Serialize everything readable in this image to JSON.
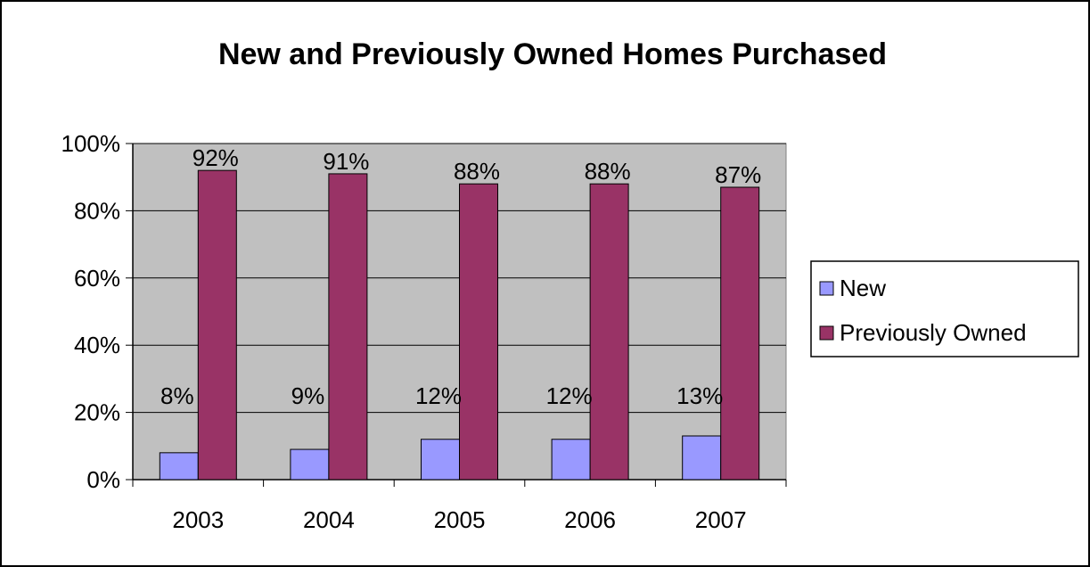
{
  "chart_data": {
    "type": "bar",
    "title": "New and Previously Owned Homes Purchased",
    "xlabel": "",
    "ylabel": "",
    "categories": [
      "2003",
      "2004",
      "2005",
      "2006",
      "2007"
    ],
    "series": [
      {
        "name": "New",
        "values": [
          8,
          9,
          12,
          12,
          13
        ],
        "labels": [
          "8%",
          "9%",
          "12%",
          "12%",
          "13%"
        ],
        "color": "#9999FF"
      },
      {
        "name": "Previously Owned",
        "values": [
          92,
          91,
          88,
          88,
          87
        ],
        "labels": [
          "92%",
          "91%",
          "88%",
          "88%",
          "87%"
        ],
        "color": "#993366"
      }
    ],
    "ylim": [
      0,
      100
    ],
    "yticks": [
      0,
      20,
      40,
      60,
      80,
      100
    ],
    "ytick_labels": [
      "0%",
      "20%",
      "40%",
      "60%",
      "80%",
      "100%"
    ],
    "grid": true,
    "plot_background": "#C0C0C0",
    "legend_position": "right"
  }
}
